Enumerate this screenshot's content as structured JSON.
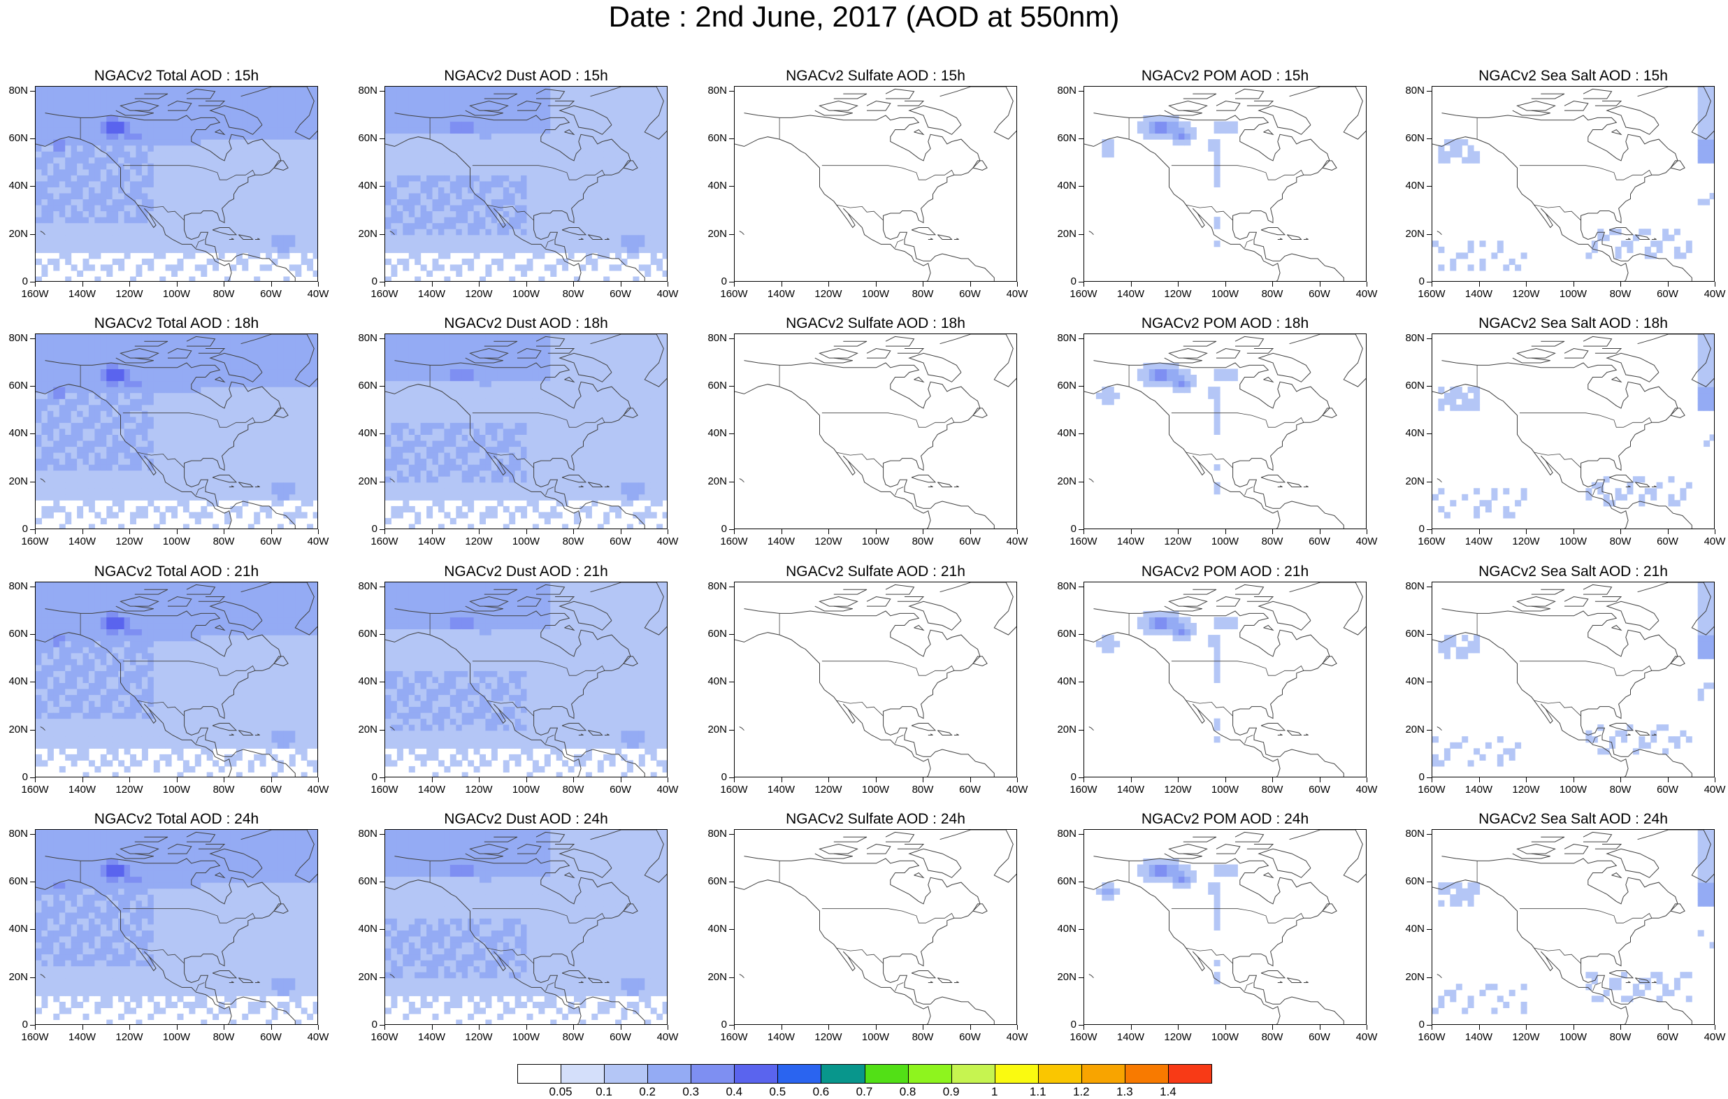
{
  "main_title": "Date : 2nd June, 2017 (AOD at 550nm)",
  "x_tick_labels": [
    "160W",
    "140W",
    "120W",
    "100W",
    "80W",
    "60W",
    "40W"
  ],
  "y_tick_labels": [
    "80N",
    "60N",
    "40N",
    "20N",
    "0"
  ],
  "row_hours": [
    "15h",
    "18h",
    "21h",
    "24h"
  ],
  "panels": [
    {
      "title": "NGACv2 Total AOD : 15h",
      "field": "total",
      "hour": "15h"
    },
    {
      "title": "NGACv2 Dust AOD : 15h",
      "field": "dust",
      "hour": "15h"
    },
    {
      "title": "NGACv2 Sulfate AOD : 15h",
      "field": "sulfate",
      "hour": "15h"
    },
    {
      "title": "NGACv2 POM AOD : 15h",
      "field": "pom",
      "hour": "15h"
    },
    {
      "title": "NGACv2 Sea Salt AOD : 15h",
      "field": "seasalt",
      "hour": "15h"
    },
    {
      "title": "NGACv2 Total AOD : 18h",
      "field": "total",
      "hour": "18h"
    },
    {
      "title": "NGACv2 Dust AOD : 18h",
      "field": "dust",
      "hour": "18h"
    },
    {
      "title": "NGACv2 Sulfate AOD : 18h",
      "field": "sulfate",
      "hour": "18h"
    },
    {
      "title": "NGACv2 POM AOD : 18h",
      "field": "pom",
      "hour": "18h"
    },
    {
      "title": "NGACv2 Sea Salt AOD : 18h",
      "field": "seasalt",
      "hour": "18h"
    },
    {
      "title": "NGACv2 Total AOD : 21h",
      "field": "total",
      "hour": "21h"
    },
    {
      "title": "NGACv2 Dust AOD : 21h",
      "field": "dust",
      "hour": "21h"
    },
    {
      "title": "NGACv2 Sulfate AOD : 21h",
      "field": "sulfate",
      "hour": "21h"
    },
    {
      "title": "NGACv2 POM AOD : 21h",
      "field": "pom",
      "hour": "21h"
    },
    {
      "title": "NGACv2 Sea Salt AOD : 21h",
      "field": "seasalt",
      "hour": "21h"
    },
    {
      "title": "NGACv2 Total AOD : 24h",
      "field": "total",
      "hour": "24h"
    },
    {
      "title": "NGACv2 Dust AOD : 24h",
      "field": "dust",
      "hour": "24h"
    },
    {
      "title": "NGACv2 Sulfate AOD : 24h",
      "field": "sulfate",
      "hour": "24h"
    },
    {
      "title": "NGACv2 POM AOD : 24h",
      "field": "pom",
      "hour": "24h"
    },
    {
      "title": "NGACv2 Sea Salt  AOD : 24h",
      "field": "seasalt",
      "hour": "24h"
    }
  ],
  "colorbar": {
    "labels": [
      "0.05",
      "0.1",
      "0.2",
      "0.3",
      "0.4",
      "0.5",
      "0.6",
      "0.7",
      "0.8",
      "0.9",
      "1",
      "1.1",
      "1.2",
      "1.3",
      "1.4"
    ],
    "colors": [
      "#ffffff",
      "#d4dffa",
      "#b4c6f6",
      "#94abf4",
      "#7e8ff2",
      "#5a64ee",
      "#2a64f0",
      "#08968c",
      "#52e016",
      "#8ef41e",
      "#c6f450",
      "#fafa10",
      "#fac600",
      "#f8a400",
      "#f87a00",
      "#f83a16"
    ]
  },
  "colors": {
    "aod_0.05": "#d4dffa",
    "aod_0.1": "#b4c6f6",
    "aod_0.2": "#94abf4",
    "aod_0.3": "#7e8ff2",
    "aod_0.4": "#5a64ee",
    "coastline": "#404040"
  }
}
